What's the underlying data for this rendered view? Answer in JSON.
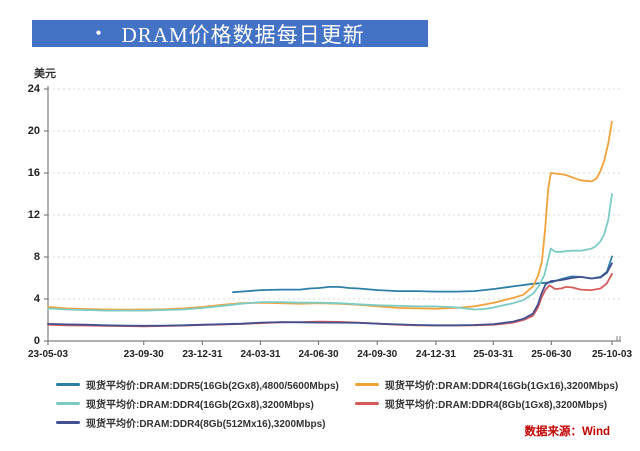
{
  "title": {
    "bullet": "•",
    "text": "DRAM价格数据每日更新"
  },
  "source": "数据来源：Wind",
  "colors": {
    "title_bar": "#4472C4",
    "source_text": "#C00000",
    "axis": "#7F7F7F",
    "grid": "#D9D9D9"
  },
  "chart_data": {
    "type": "line",
    "title": "DRAM价格数据每日更新",
    "ylabel": "美元",
    "xlabel": "",
    "ylim": [
      0,
      24
    ],
    "yticks": [
      0,
      4,
      8,
      12,
      16,
      20,
      24
    ],
    "grid": "horizontal-dashed",
    "legend_position": "bottom",
    "x_unit": "days since 2023-05-03",
    "x_range_days": 884,
    "xticks": [
      {
        "label": "23-05-03",
        "day": 0
      },
      {
        "label": "23-09-30",
        "day": 150
      },
      {
        "label": "23-12-31",
        "day": 242
      },
      {
        "label": "24-03-31",
        "day": 333
      },
      {
        "label": "24-06-30",
        "day": 424
      },
      {
        "label": "24-09-30",
        "day": 516
      },
      {
        "label": "24-12-31",
        "day": 608
      },
      {
        "label": "25-03-31",
        "day": 698
      },
      {
        "label": "25-06-30",
        "day": 789
      },
      {
        "label": "25-10-03",
        "day": 884
      }
    ],
    "series": [
      {
        "name": "现货平均价:DRAM:DDR5(16Gb(2Gx8),4800/5600Mbps)",
        "color": "#2E7FA8",
        "points": [
          [
            290,
            4.65
          ],
          [
            303,
            4.7
          ],
          [
            334,
            4.85
          ],
          [
            364,
            4.9
          ],
          [
            395,
            4.9
          ],
          [
            410,
            5.0
          ],
          [
            425,
            5.05
          ],
          [
            441,
            5.15
          ],
          [
            456,
            5.15
          ],
          [
            472,
            5.05
          ],
          [
            487,
            5.0
          ],
          [
            517,
            4.85
          ],
          [
            548,
            4.75
          ],
          [
            578,
            4.75
          ],
          [
            609,
            4.7
          ],
          [
            640,
            4.7
          ],
          [
            668,
            4.75
          ],
          [
            699,
            4.95
          ],
          [
            729,
            5.2
          ],
          [
            760,
            5.45
          ],
          [
            790,
            5.6
          ],
          [
            804,
            5.9
          ],
          [
            821,
            6.15
          ],
          [
            835,
            6.1
          ],
          [
            852,
            5.95
          ],
          [
            866,
            6.1
          ],
          [
            876,
            6.6
          ],
          [
            884,
            8.05
          ]
        ]
      },
      {
        "name": "现货平均价:DRAM:DDR4(16Gb(1Gx16),3200Mbps)",
        "color": "#F2A23A",
        "points": [
          [
            0,
            3.25
          ],
          [
            29,
            3.1
          ],
          [
            59,
            3.05
          ],
          [
            90,
            3.0
          ],
          [
            121,
            2.98
          ],
          [
            151,
            3.0
          ],
          [
            182,
            3.02
          ],
          [
            212,
            3.1
          ],
          [
            243,
            3.25
          ],
          [
            274,
            3.45
          ],
          [
            303,
            3.6
          ],
          [
            334,
            3.65
          ],
          [
            364,
            3.6
          ],
          [
            395,
            3.55
          ],
          [
            425,
            3.6
          ],
          [
            456,
            3.55
          ],
          [
            487,
            3.45
          ],
          [
            517,
            3.3
          ],
          [
            548,
            3.15
          ],
          [
            578,
            3.1
          ],
          [
            609,
            3.08
          ],
          [
            640,
            3.15
          ],
          [
            668,
            3.3
          ],
          [
            699,
            3.65
          ],
          [
            729,
            4.1
          ],
          [
            745,
            4.4
          ],
          [
            760,
            5.2
          ],
          [
            768,
            6.2
          ],
          [
            774,
            7.5
          ],
          [
            779,
            10.5
          ],
          [
            784,
            14.5
          ],
          [
            788,
            16.0
          ],
          [
            795,
            15.95
          ],
          [
            804,
            15.9
          ],
          [
            812,
            15.8
          ],
          [
            821,
            15.6
          ],
          [
            835,
            15.3
          ],
          [
            852,
            15.2
          ],
          [
            860,
            15.5
          ],
          [
            866,
            16.2
          ],
          [
            872,
            17.2
          ],
          [
            878,
            18.8
          ],
          [
            884,
            20.9
          ]
        ]
      },
      {
        "name": "现货平均价:DRAM:DDR4(16Gb(2Gx8),3200Mbps)",
        "color": "#7CCBC4",
        "points": [
          [
            0,
            3.1
          ],
          [
            29,
            3.0
          ],
          [
            59,
            2.95
          ],
          [
            90,
            2.9
          ],
          [
            121,
            2.9
          ],
          [
            151,
            2.9
          ],
          [
            182,
            2.95
          ],
          [
            212,
            3.0
          ],
          [
            243,
            3.15
          ],
          [
            274,
            3.35
          ],
          [
            303,
            3.55
          ],
          [
            334,
            3.7
          ],
          [
            364,
            3.7
          ],
          [
            395,
            3.65
          ],
          [
            425,
            3.65
          ],
          [
            456,
            3.6
          ],
          [
            487,
            3.5
          ],
          [
            517,
            3.4
          ],
          [
            548,
            3.35
          ],
          [
            578,
            3.3
          ],
          [
            609,
            3.3
          ],
          [
            640,
            3.2
          ],
          [
            668,
            3.0
          ],
          [
            685,
            3.05
          ],
          [
            699,
            3.2
          ],
          [
            729,
            3.6
          ],
          [
            745,
            3.9
          ],
          [
            760,
            4.5
          ],
          [
            770,
            5.3
          ],
          [
            778,
            6.3
          ],
          [
            784,
            7.8
          ],
          [
            788,
            8.8
          ],
          [
            795,
            8.5
          ],
          [
            804,
            8.5
          ],
          [
            812,
            8.55
          ],
          [
            821,
            8.6
          ],
          [
            835,
            8.6
          ],
          [
            852,
            8.8
          ],
          [
            858,
            9.0
          ],
          [
            866,
            9.5
          ],
          [
            872,
            10.2
          ],
          [
            878,
            11.5
          ],
          [
            884,
            14.0
          ]
        ]
      },
      {
        "name": "现货平均价:DRAM:DDR4(8Gb(1Gx8),3200Mbps)",
        "color": "#D45B5B",
        "points": [
          [
            0,
            1.55
          ],
          [
            29,
            1.5
          ],
          [
            59,
            1.48
          ],
          [
            90,
            1.45
          ],
          [
            121,
            1.42
          ],
          [
            151,
            1.4
          ],
          [
            182,
            1.43
          ],
          [
            212,
            1.47
          ],
          [
            243,
            1.52
          ],
          [
            274,
            1.57
          ],
          [
            303,
            1.62
          ],
          [
            334,
            1.7
          ],
          [
            364,
            1.78
          ],
          [
            395,
            1.8
          ],
          [
            425,
            1.85
          ],
          [
            456,
            1.82
          ],
          [
            487,
            1.75
          ],
          [
            517,
            1.65
          ],
          [
            548,
            1.55
          ],
          [
            578,
            1.5
          ],
          [
            609,
            1.48
          ],
          [
            640,
            1.48
          ],
          [
            668,
            1.5
          ],
          [
            699,
            1.55
          ],
          [
            729,
            1.75
          ],
          [
            745,
            2.0
          ],
          [
            760,
            2.4
          ],
          [
            768,
            3.2
          ],
          [
            774,
            4.2
          ],
          [
            780,
            4.9
          ],
          [
            786,
            5.3
          ],
          [
            795,
            4.95
          ],
          [
            804,
            5.0
          ],
          [
            812,
            5.15
          ],
          [
            821,
            5.1
          ],
          [
            835,
            4.9
          ],
          [
            852,
            4.85
          ],
          [
            866,
            5.0
          ],
          [
            876,
            5.5
          ],
          [
            884,
            6.4
          ]
        ]
      },
      {
        "name": "现货平均价:DRAM:DDR4(8Gb(512Mx16),3200Mbps)",
        "color": "#44508E",
        "points": [
          [
            0,
            1.63
          ],
          [
            29,
            1.58
          ],
          [
            59,
            1.55
          ],
          [
            90,
            1.5
          ],
          [
            121,
            1.47
          ],
          [
            151,
            1.45
          ],
          [
            182,
            1.47
          ],
          [
            212,
            1.5
          ],
          [
            243,
            1.55
          ],
          [
            274,
            1.6
          ],
          [
            303,
            1.65
          ],
          [
            334,
            1.75
          ],
          [
            364,
            1.8
          ],
          [
            395,
            1.78
          ],
          [
            425,
            1.75
          ],
          [
            456,
            1.75
          ],
          [
            487,
            1.72
          ],
          [
            517,
            1.65
          ],
          [
            548,
            1.58
          ],
          [
            578,
            1.52
          ],
          [
            609,
            1.5
          ],
          [
            640,
            1.5
          ],
          [
            668,
            1.52
          ],
          [
            699,
            1.6
          ],
          [
            729,
            1.85
          ],
          [
            745,
            2.1
          ],
          [
            760,
            2.6
          ],
          [
            768,
            3.5
          ],
          [
            774,
            4.6
          ],
          [
            780,
            5.4
          ],
          [
            788,
            5.7
          ],
          [
            804,
            5.8
          ],
          [
            821,
            6.0
          ],
          [
            835,
            6.1
          ],
          [
            852,
            5.95
          ],
          [
            866,
            6.05
          ],
          [
            876,
            6.5
          ],
          [
            884,
            7.4
          ]
        ]
      }
    ]
  }
}
